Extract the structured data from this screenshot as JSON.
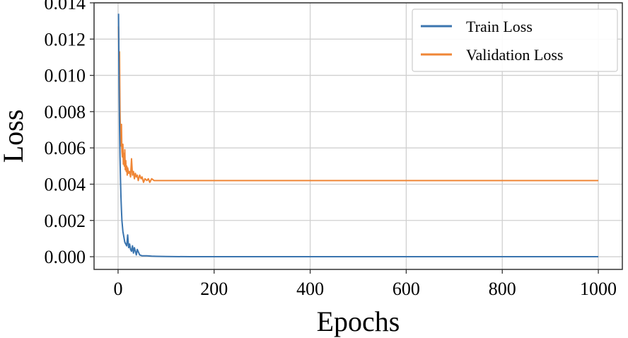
{
  "chart_data": {
    "type": "line",
    "xlabel": "Epochs",
    "ylabel": "Loss",
    "xlim": [
      -50,
      1050
    ],
    "ylim": [
      -0.0007,
      0.014
    ],
    "xticks": [
      0,
      200,
      400,
      600,
      800,
      1000
    ],
    "xtick_labels": [
      "0",
      "200",
      "400",
      "600",
      "800",
      "1000"
    ],
    "yticks": [
      0.0,
      0.002,
      0.004,
      0.006,
      0.008,
      0.01,
      0.012,
      0.014
    ],
    "ytick_labels": [
      "0.000",
      "0.002",
      "0.004",
      "0.006",
      "0.008",
      "0.010",
      "0.012",
      "0.014"
    ],
    "grid": true,
    "legend_position": "top-right",
    "series": [
      {
        "name": "Train Loss",
        "color": "#3b75af",
        "x": [
          1,
          2,
          3,
          4,
          5,
          6,
          7,
          8,
          10,
          12,
          14,
          16,
          18,
          20,
          22,
          24,
          26,
          28,
          30,
          32,
          34,
          36,
          38,
          40,
          45,
          50,
          60,
          70,
          80,
          100,
          150,
          200,
          300,
          400,
          500,
          600,
          700,
          800,
          900,
          1000
        ],
        "y": [
          0.0134,
          0.0097,
          0.0072,
          0.0055,
          0.0043,
          0.0033,
          0.0026,
          0.002,
          0.0014,
          0.0011,
          0.0008,
          0.0007,
          0.0006,
          0.0012,
          0.0005,
          0.0007,
          0.0004,
          0.0003,
          0.0006,
          0.0002,
          0.0005,
          0.0003,
          0.0001,
          0.0004,
          0.0001,
          5e-05,
          5e-05,
          3e-05,
          2e-05,
          1e-05,
          0.0,
          0.0,
          0.0,
          0.0,
          0.0,
          0.0,
          0.0,
          0.0,
          0.0,
          0.0
        ]
      },
      {
        "name": "Validation Loss",
        "color": "#ef8636",
        "x": [
          1,
          2,
          3,
          4,
          5,
          6,
          7,
          8,
          9,
          10,
          11,
          12,
          13,
          14,
          15,
          16,
          17,
          18,
          19,
          20,
          22,
          24,
          26,
          28,
          30,
          32,
          34,
          36,
          38,
          40,
          42,
          45,
          48,
          50,
          53,
          56,
          60,
          63,
          66,
          70,
          75,
          80,
          90,
          100,
          150,
          200,
          300,
          400,
          500,
          600,
          700,
          800,
          900,
          1000
        ],
        "y": [
          0.0127,
          0.0108,
          0.0113,
          0.0081,
          0.0067,
          0.0061,
          0.0073,
          0.0058,
          0.0055,
          0.0062,
          0.0051,
          0.0057,
          0.005,
          0.0059,
          0.0048,
          0.0053,
          0.0047,
          0.005,
          0.0045,
          0.0049,
          0.0046,
          0.0047,
          0.0044,
          0.0054,
          0.0045,
          0.0047,
          0.0043,
          0.0046,
          0.0044,
          0.0045,
          0.0042,
          0.0045,
          0.0043,
          0.0044,
          0.0041,
          0.0043,
          0.0042,
          0.0043,
          0.0041,
          0.0043,
          0.0042,
          0.0042,
          0.0042,
          0.0042,
          0.0042,
          0.0042,
          0.0042,
          0.0042,
          0.0042,
          0.0042,
          0.0042,
          0.0042,
          0.0042,
          0.0042
        ]
      }
    ]
  }
}
